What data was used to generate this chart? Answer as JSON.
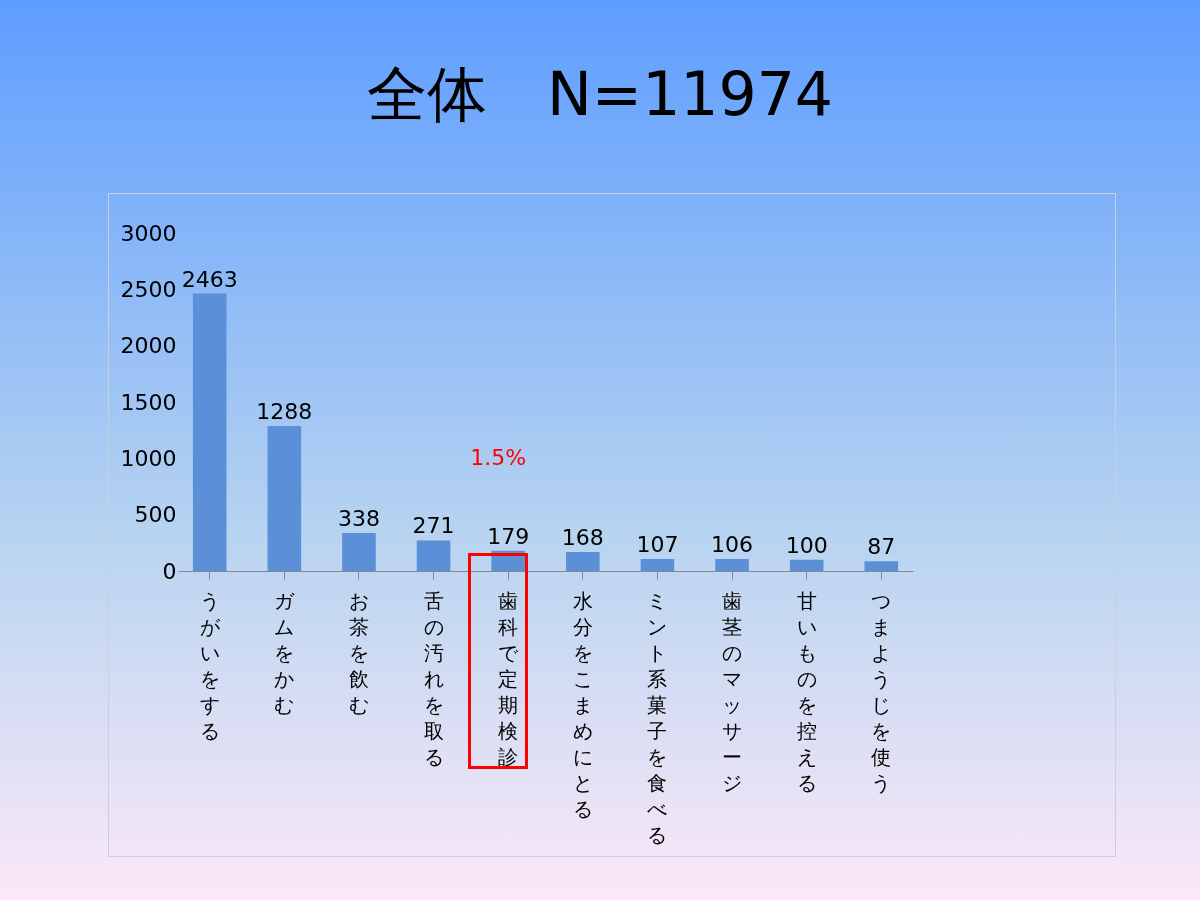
{
  "chart_data": {
    "type": "bar",
    "title": "全体　N=11974",
    "categories": [
      "うがいをする",
      "ガムをかむ",
      "お茶を飲む",
      "舌の汚れを取る",
      "歯科で定期検診",
      "水分をこまめにとる",
      "ミント系菓子を食べる",
      "歯茎のマッサージ",
      "甘いものを控える",
      "つまようじを使う"
    ],
    "values": [
      2463,
      1288,
      338,
      271,
      179,
      168,
      107,
      106,
      100,
      87
    ],
    "color": "#5b8fd8",
    "ylim": [
      0,
      3000
    ],
    "yticks": [
      0,
      500,
      1000,
      1500,
      2000,
      2500,
      3000
    ],
    "data_labels": true,
    "grid": false,
    "annotations": [
      "1.5%"
    ]
  }
}
